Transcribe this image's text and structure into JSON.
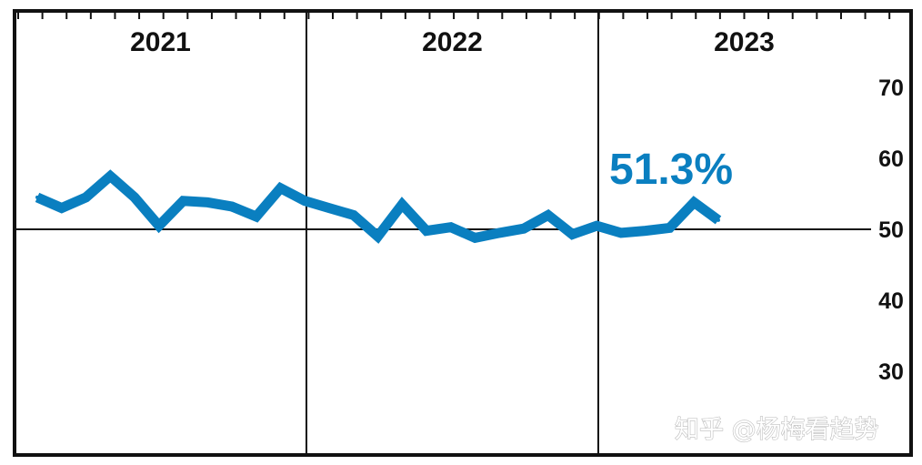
{
  "chart_data": {
    "type": "line",
    "title": "",
    "xlabel": "",
    "ylabel": "",
    "year_labels": [
      "2021",
      "2022",
      "2023"
    ],
    "x": [
      "2021-01",
      "2021-02",
      "2021-03",
      "2021-04",
      "2021-05",
      "2021-06",
      "2021-07",
      "2021-08",
      "2021-09",
      "2021-10",
      "2021-11",
      "2021-12",
      "2022-01",
      "2022-02",
      "2022-03",
      "2022-04",
      "2022-05",
      "2022-06",
      "2022-07",
      "2022-08",
      "2022-09",
      "2022-10",
      "2022-11",
      "2022-12",
      "2023-01",
      "2023-02",
      "2023-03",
      "2023-04",
      "2023-05",
      "2023-06",
      "2023-07",
      "2023-08",
      "2023-09",
      "2023-10",
      "2023-11",
      "2023-12"
    ],
    "series": [
      {
        "name": "",
        "color": "#0a7fc0",
        "values": [
          54.5,
          53.0,
          54.5,
          57.5,
          54.5,
          50.5,
          54.0,
          53.8,
          53.2,
          51.8,
          55.8,
          54.0,
          53.0,
          52.0,
          49.0,
          53.5,
          49.8,
          50.3,
          48.8,
          49.5,
          50.1,
          52.0,
          49.3,
          50.5,
          49.5,
          49.8,
          50.2,
          53.8,
          51.3,
          null,
          null,
          null,
          null,
          null,
          null,
          null
        ]
      }
    ],
    "ylim": [
      20,
      80
    ],
    "yticks": [
      30,
      40,
      50,
      60,
      70
    ],
    "reference_line": 50,
    "callout": "51.3%",
    "grid": false
  },
  "watermark": "知乎 @杨梅看趋势"
}
